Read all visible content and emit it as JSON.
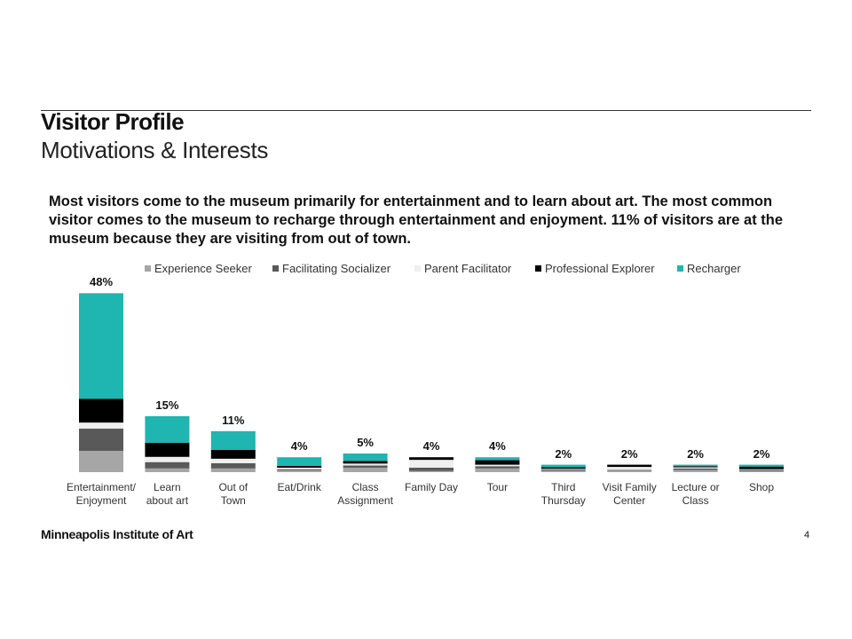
{
  "header": {
    "title": "Visitor Profile",
    "subtitle": "Motivations & Interests"
  },
  "summary": "Most visitors come to the museum primarily for entertainment and to learn about art. The most common visitor comes to the museum to recharge through entertainment and enjoyment. 11% of visitors are at the museum because they are visiting from out of town.",
  "footer": {
    "org": "Minneapolis Institute of Art",
    "page": "4"
  },
  "chart_data": {
    "type": "bar",
    "stacked": true,
    "categories": [
      "Entertainment/\nEnjoyment",
      "Learn\nabout art",
      "Out of\nTown",
      "Eat/Drink",
      "Class\nAssignment",
      "Family Day",
      "Tour",
      "Third\nThursday",
      "Visit Family\nCenter",
      "Lecture or\nClass",
      "Shop"
    ],
    "series": [
      {
        "name": "Experience Seeker",
        "color": "#a6a6a6",
        "values": [
          5.7,
          1,
          1,
          0.5,
          1.2,
          0.3,
          1.0,
          0.4,
          0.4,
          0.6,
          0.3
        ]
      },
      {
        "name": "Facilitating Socializer",
        "color": "#595959",
        "values": [
          6,
          1.7,
          1.4,
          0.3,
          0.6,
          0.9,
          0.6,
          0.3,
          0.2,
          0.4,
          0.3
        ]
      },
      {
        "name": "Parent Facilitator",
        "color": "#efefef",
        "values": [
          1.6,
          1.4,
          1.2,
          0.4,
          0.5,
          2.1,
          0.4,
          0.2,
          0.8,
          0.3,
          0.2
        ]
      },
      {
        "name": "Professional Explorer",
        "color": "#000000",
        "values": [
          6.4,
          3.8,
          2.4,
          0.5,
          0.7,
          0.7,
          1.2,
          0.4,
          0.6,
          0.3,
          0.7
        ]
      },
      {
        "name": "Recharger",
        "color": "#1fb5b0",
        "values": [
          28.3,
          7.1,
          5,
          2.3,
          2.0,
          0,
          0.8,
          0.7,
          0,
          0.4,
          0.5
        ]
      }
    ],
    "totals": [
      48,
      15,
      11,
      4,
      5,
      4,
      4,
      2,
      2,
      2,
      2
    ],
    "total_labels": [
      "48%",
      "15%",
      "11%",
      "4%",
      "5%",
      "4%",
      "4%",
      "2%",
      "2%",
      "2%",
      "2%"
    ]
  }
}
